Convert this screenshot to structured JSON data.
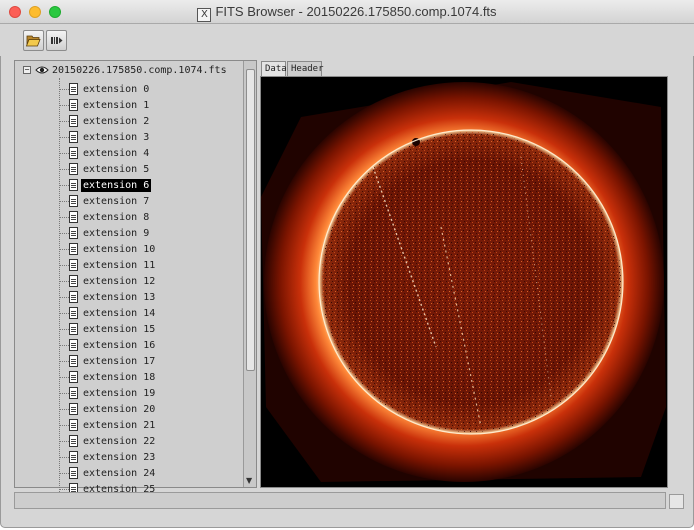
{
  "window": {
    "title": "FITS Browser - 20150226.175850.comp.1074.fts",
    "title_icon": "X"
  },
  "toolbar": {
    "open_icon": "folder-open-icon",
    "next_icon": "next-extension-icon"
  },
  "tree": {
    "collapse_symbol": "⊟",
    "root_label": "20150226.175850.comp.1074.fts",
    "selected_index": 6,
    "items": [
      "extension 0",
      "extension 1",
      "extension 2",
      "extension 3",
      "extension 4",
      "extension 5",
      "extension 6",
      "extension 7",
      "extension 8",
      "extension 9",
      "extension 10",
      "extension 11",
      "extension 12",
      "extension 13",
      "extension 14",
      "extension 15",
      "extension 16",
      "extension 17",
      "extension 18",
      "extension 19",
      "extension 20",
      "extension 21",
      "extension 22",
      "extension 23",
      "extension 24",
      "extension 25"
    ]
  },
  "tabs": {
    "data": "Data",
    "header": "Header"
  },
  "image": {
    "colormap": [
      "#000000",
      "#5a0a00",
      "#b02a00",
      "#ff7a2a",
      "#ffe9c0"
    ]
  }
}
